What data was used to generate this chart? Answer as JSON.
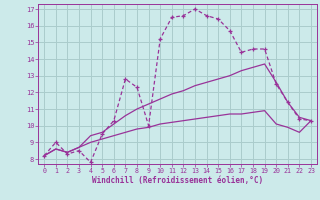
{
  "xlabel": "Windchill (Refroidissement éolien,°C)",
  "background_color": "#cceaea",
  "grid_color": "#aacccc",
  "line_color": "#993399",
  "xlim": [
    -0.5,
    23.5
  ],
  "ylim": [
    7.7,
    17.3
  ],
  "xticks": [
    0,
    1,
    2,
    3,
    4,
    5,
    6,
    7,
    8,
    9,
    10,
    11,
    12,
    13,
    14,
    15,
    16,
    17,
    18,
    19,
    20,
    21,
    22,
    23
  ],
  "yticks": [
    8,
    9,
    10,
    11,
    12,
    13,
    14,
    15,
    16,
    17
  ],
  "series_dashed": [
    8.2,
    9.0,
    8.3,
    8.5,
    7.8,
    9.5,
    10.3,
    12.8,
    12.3,
    10.0,
    15.2,
    16.5,
    16.6,
    17.0,
    16.6,
    16.4,
    15.7,
    14.4,
    14.6,
    14.6,
    12.5,
    11.4,
    10.4,
    10.3
  ],
  "series2": [
    8.2,
    8.6,
    8.4,
    8.7,
    9.4,
    9.6,
    10.1,
    10.6,
    11.0,
    11.3,
    11.6,
    11.9,
    12.1,
    12.4,
    12.6,
    12.8,
    13.0,
    13.3,
    13.5,
    13.7,
    12.6,
    11.4,
    10.5,
    10.3
  ],
  "series3": [
    8.2,
    8.6,
    8.4,
    8.7,
    9.0,
    9.2,
    9.4,
    9.6,
    9.8,
    9.9,
    10.1,
    10.2,
    10.3,
    10.4,
    10.5,
    10.6,
    10.7,
    10.7,
    10.8,
    10.9,
    10.1,
    9.9,
    9.6,
    10.3
  ]
}
